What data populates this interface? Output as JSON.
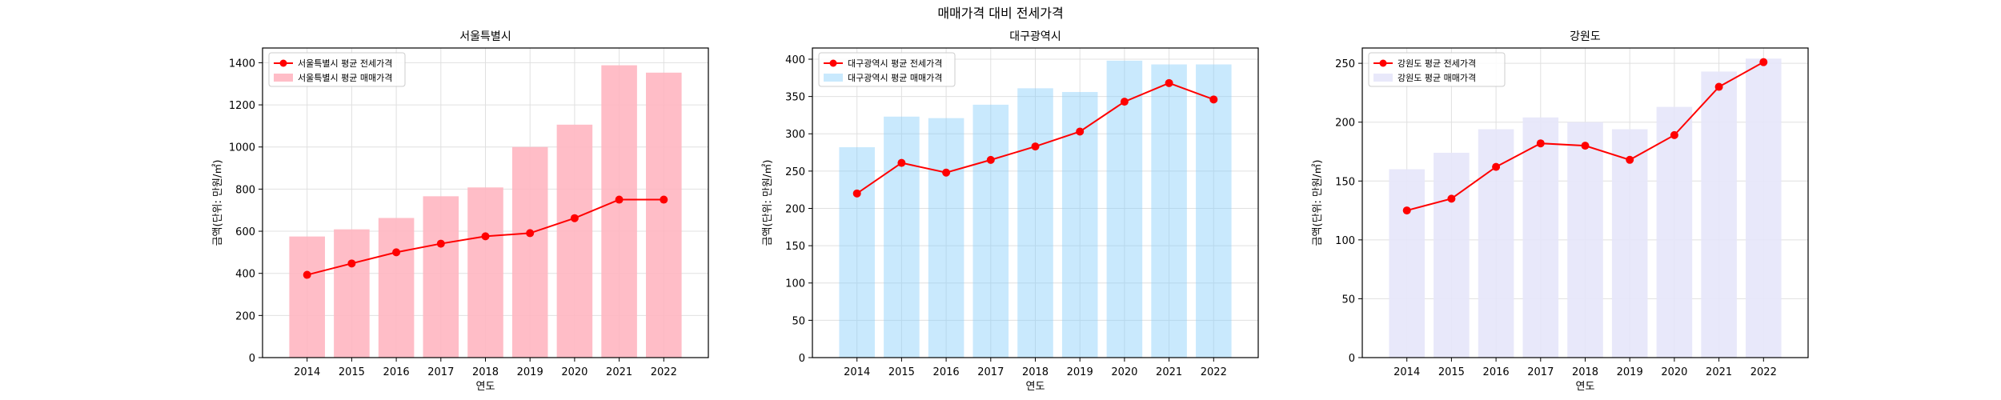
{
  "suptitle": "매매가격 대비 전세가격",
  "chart_data": [
    {
      "type": "bar",
      "title": "서울특별시",
      "xlabel": "연도",
      "ylabel": "금액(단위: 만원/㎡)",
      "categories": [
        "2014",
        "2015",
        "2016",
        "2017",
        "2018",
        "2019",
        "2020",
        "2021",
        "2022"
      ],
      "ylim": [
        0,
        1470
      ],
      "yticks": [
        0,
        200,
        400,
        600,
        800,
        1000,
        1200,
        1400
      ],
      "grid": true,
      "legend_position": "top-left",
      "series": [
        {
          "name": "서울특별시 평균 전세가격",
          "kind": "line",
          "color": "#ff0000",
          "values": [
            393,
            447,
            500,
            541,
            576,
            591,
            662,
            750,
            750
          ]
        },
        {
          "name": "서울특별시 평균 매매가격",
          "kind": "bar",
          "color": "#ffb6c1",
          "values": [
            575,
            609,
            663,
            766,
            808,
            1000,
            1106,
            1388,
            1353
          ]
        }
      ]
    },
    {
      "type": "bar",
      "title": "대구광역시",
      "xlabel": "연도",
      "ylabel": "금액(단위: 만원/㎡)",
      "categories": [
        "2014",
        "2015",
        "2016",
        "2017",
        "2018",
        "2019",
        "2020",
        "2021",
        "2022"
      ],
      "ylim": [
        0,
        415
      ],
      "yticks": [
        0,
        50,
        100,
        150,
        200,
        250,
        300,
        350,
        400
      ],
      "grid": true,
      "legend_position": "top-left",
      "series": [
        {
          "name": "대구광역시 평균 전세가격",
          "kind": "line",
          "color": "#ff0000",
          "values": [
            220,
            261,
            248,
            265,
            283,
            303,
            343,
            368,
            346
          ]
        },
        {
          "name": "대구광역시 평균 매매가격",
          "kind": "bar",
          "color": "#87cefa",
          "values": [
            282,
            323,
            321,
            339,
            361,
            356,
            398,
            393,
            393
          ]
        }
      ]
    },
    {
      "type": "bar",
      "title": "강원도",
      "xlabel": "연도",
      "ylabel": "금액(단위: 만원/㎡)",
      "categories": [
        "2014",
        "2015",
        "2016",
        "2017",
        "2018",
        "2019",
        "2020",
        "2021",
        "2022"
      ],
      "ylim": [
        0,
        263
      ],
      "yticks": [
        0,
        50,
        100,
        150,
        200,
        250
      ],
      "grid": true,
      "legend_position": "top-left",
      "series": [
        {
          "name": "강원도 평균 전세가격",
          "kind": "line",
          "color": "#ff0000",
          "values": [
            125,
            135,
            162,
            182,
            180,
            168,
            189,
            230,
            251
          ]
        },
        {
          "name": "강원도 평균 매매가격",
          "kind": "bar",
          "color": "#e6e6fa",
          "values": [
            160,
            174,
            194,
            204,
            200,
            194,
            213,
            243,
            254
          ]
        }
      ]
    }
  ]
}
